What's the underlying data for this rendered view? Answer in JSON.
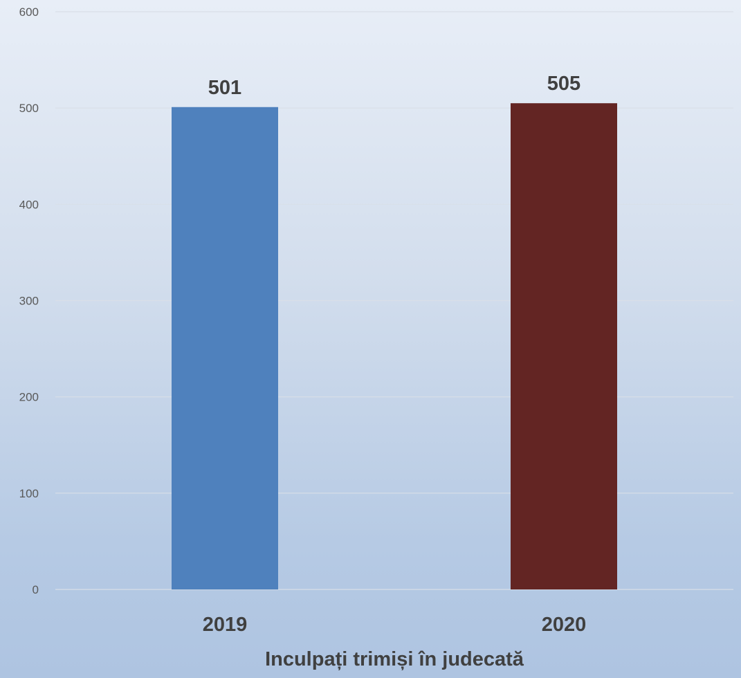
{
  "chart_data": {
    "type": "bar",
    "categories": [
      "2019",
      "2020"
    ],
    "values": [
      501,
      505
    ],
    "colors": [
      "#4f81bd",
      "#632523"
    ],
    "xlabel": "Inculpați trimiși în judecată",
    "ylabel": "",
    "ylim": [
      0,
      600
    ],
    "yticks": [
      0,
      100,
      200,
      300,
      400,
      500,
      600
    ],
    "grid": true,
    "legend": "none"
  }
}
